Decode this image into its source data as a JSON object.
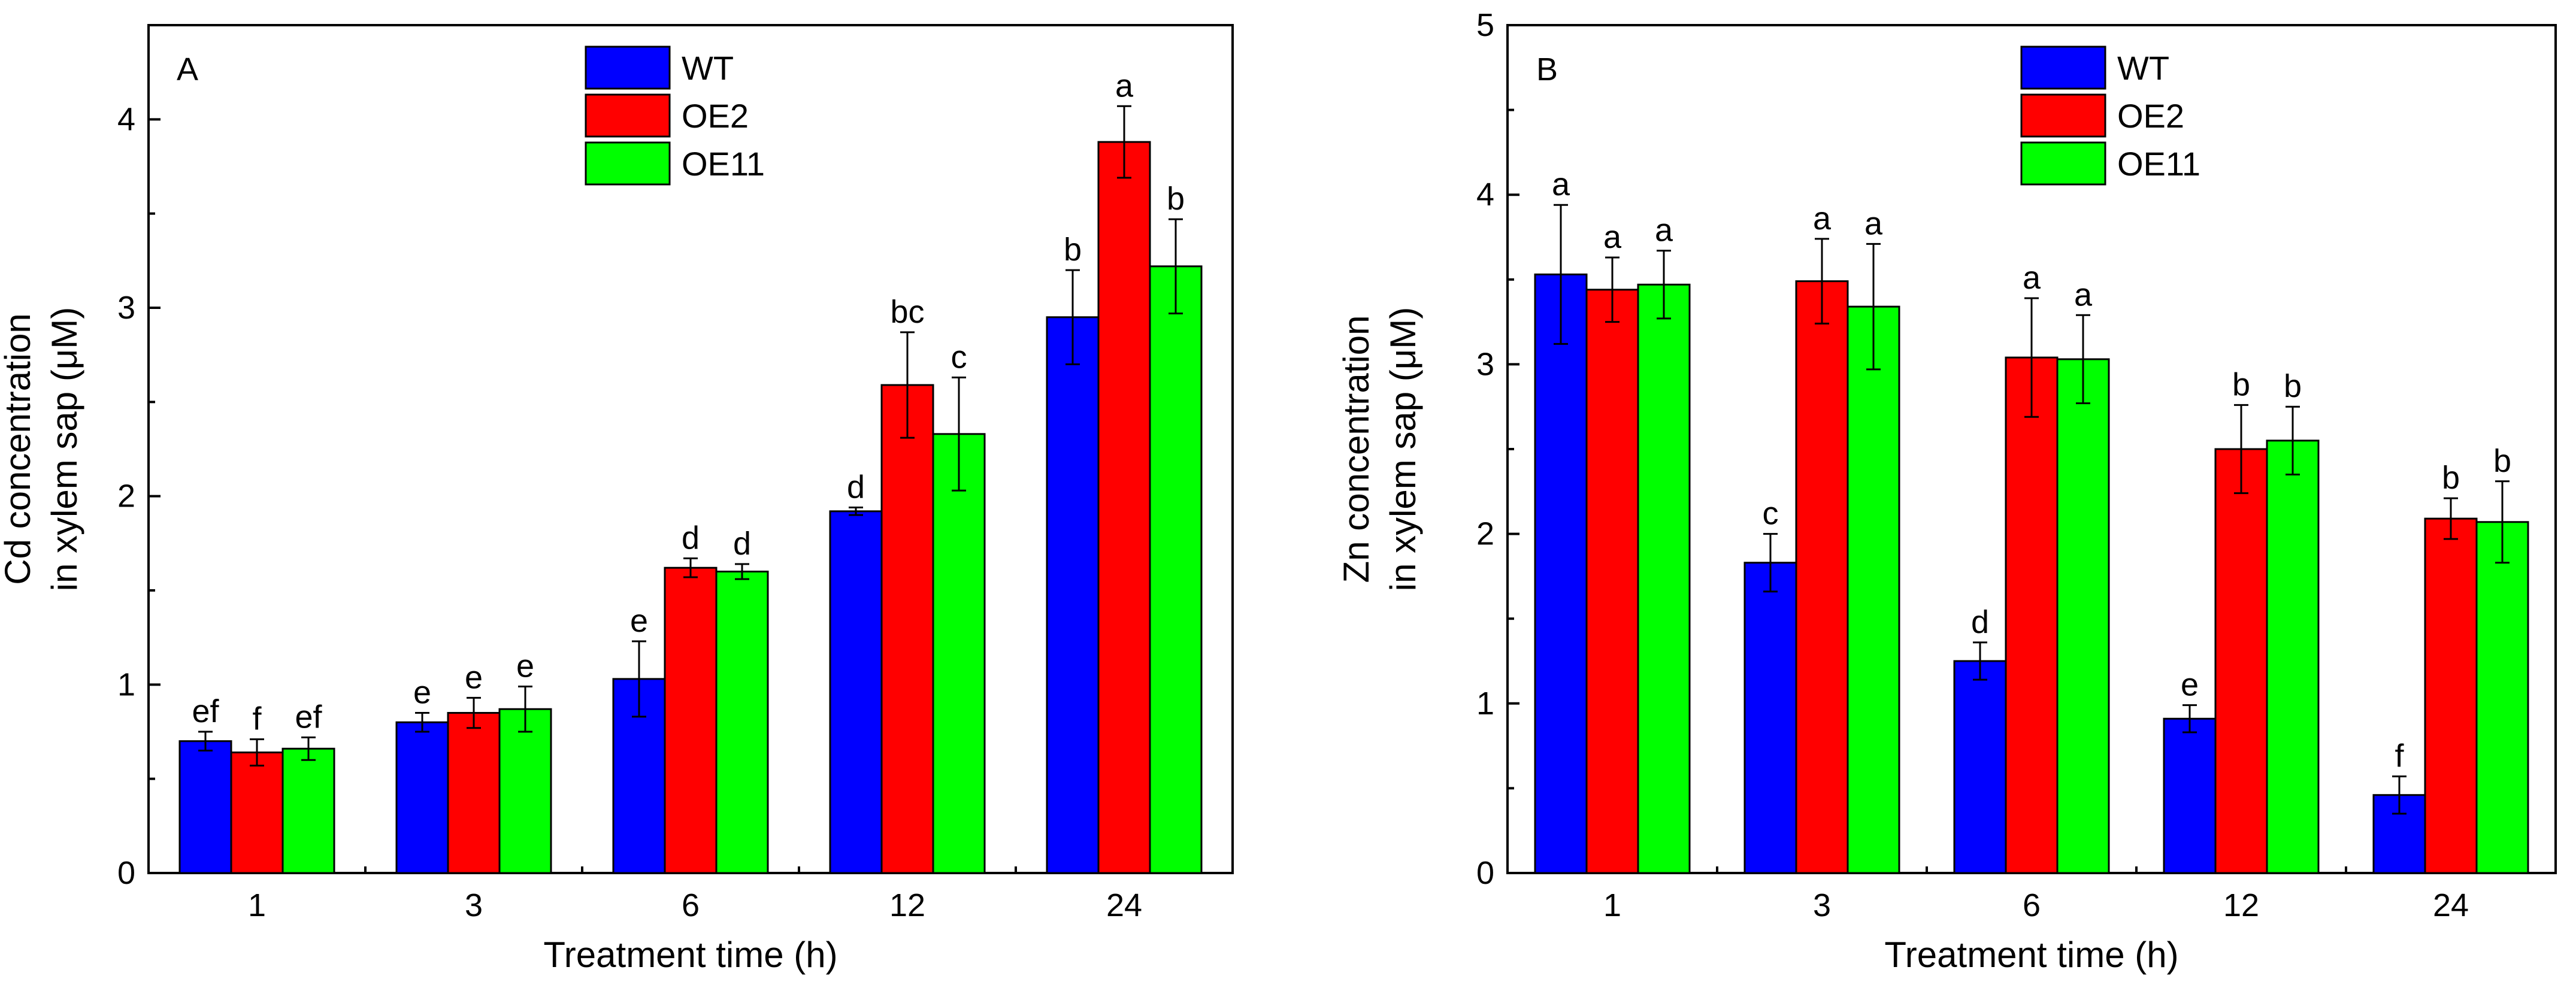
{
  "legend_labels": [
    "WT",
    "OE2",
    "OE11"
  ],
  "series_colors": [
    "#0000ff",
    "#ff0000",
    "#00ff00"
  ],
  "chart_data": [
    {
      "type": "bar",
      "panel_label": "A",
      "categories": [
        "1",
        "3",
        "6",
        "12",
        "24"
      ],
      "xlabel": "Treatment time (h)",
      "ylabel_lines": [
        "Cd concentration",
        "in xylem sap (μM)"
      ],
      "ylim": [
        0,
        4.5
      ],
      "yticks": [
        0,
        1,
        2,
        3,
        4
      ],
      "legend_position": "top-center",
      "series": [
        {
          "name": "WT",
          "values": [
            0.7,
            0.8,
            1.03,
            1.92,
            2.95
          ],
          "errors": [
            0.05,
            0.05,
            0.2,
            0.02,
            0.25
          ],
          "letters": [
            "ef",
            "e",
            "e",
            "d",
            "b"
          ]
        },
        {
          "name": "OE2",
          "values": [
            0.64,
            0.85,
            1.62,
            2.59,
            3.88
          ],
          "errors": [
            0.07,
            0.08,
            0.05,
            0.28,
            0.19
          ],
          "letters": [
            "f",
            "e",
            "d",
            "bc",
            "a"
          ]
        },
        {
          "name": "OE11",
          "values": [
            0.66,
            0.87,
            1.6,
            2.33,
            3.22
          ],
          "errors": [
            0.06,
            0.12,
            0.04,
            0.3,
            0.25
          ],
          "letters": [
            "ef",
            "e",
            "d",
            "c",
            "b"
          ]
        }
      ]
    },
    {
      "type": "bar",
      "panel_label": "B",
      "categories": [
        "1",
        "3",
        "6",
        "12",
        "24"
      ],
      "xlabel": "Treatment time (h)",
      "ylabel_lines": [
        "Zn concentration",
        "in xylem sap (μM)"
      ],
      "ylim": [
        0,
        5
      ],
      "yticks": [
        0,
        1,
        2,
        3,
        4,
        5
      ],
      "legend_position": "top-center",
      "series": [
        {
          "name": "WT",
          "values": [
            3.53,
            1.83,
            1.25,
            0.91,
            0.46
          ],
          "errors": [
            0.41,
            0.17,
            0.11,
            0.08,
            0.11
          ],
          "letters": [
            "a",
            "c",
            "d",
            "e",
            "f"
          ]
        },
        {
          "name": "OE2",
          "values": [
            3.44,
            3.49,
            3.04,
            2.5,
            2.09
          ],
          "errors": [
            0.19,
            0.25,
            0.35,
            0.26,
            0.12
          ],
          "letters": [
            "a",
            "a",
            "a",
            "b",
            "b"
          ]
        },
        {
          "name": "OE11",
          "values": [
            3.47,
            3.34,
            3.03,
            2.55,
            2.07
          ],
          "errors": [
            0.2,
            0.37,
            0.26,
            0.2,
            0.24
          ],
          "letters": [
            "a",
            "a",
            "a",
            "b",
            "b"
          ]
        }
      ]
    }
  ]
}
